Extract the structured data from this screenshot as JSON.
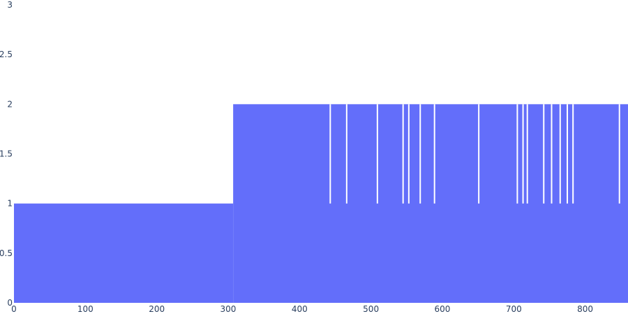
{
  "chart_data": {
    "type": "bar",
    "title": "",
    "xlabel": "",
    "ylabel": "",
    "xlim": [
      0,
      860
    ],
    "ylim": [
      0,
      3
    ],
    "x_ticks": [
      0,
      100,
      200,
      300,
      400,
      500,
      600,
      700,
      800
    ],
    "y_ticks": [
      0,
      0.5,
      1,
      1.5,
      2,
      2.5,
      3
    ],
    "y_tick_labels": [
      "0",
      "0.5",
      "1",
      "1.5",
      "2",
      "2.5",
      "3"
    ],
    "bar_color": "#636efa",
    "grid": false,
    "legend": "none",
    "segments": [
      {
        "x_start": 0,
        "x_end": 307,
        "value": 1
      },
      {
        "x_start": 307,
        "x_end": 860,
        "value": 2
      }
    ],
    "gaps_at_value_2": [
      443,
      466,
      509,
      545,
      553,
      569,
      589,
      651,
      705,
      713,
      719,
      742,
      753,
      765,
      775,
      783,
      848
    ]
  }
}
